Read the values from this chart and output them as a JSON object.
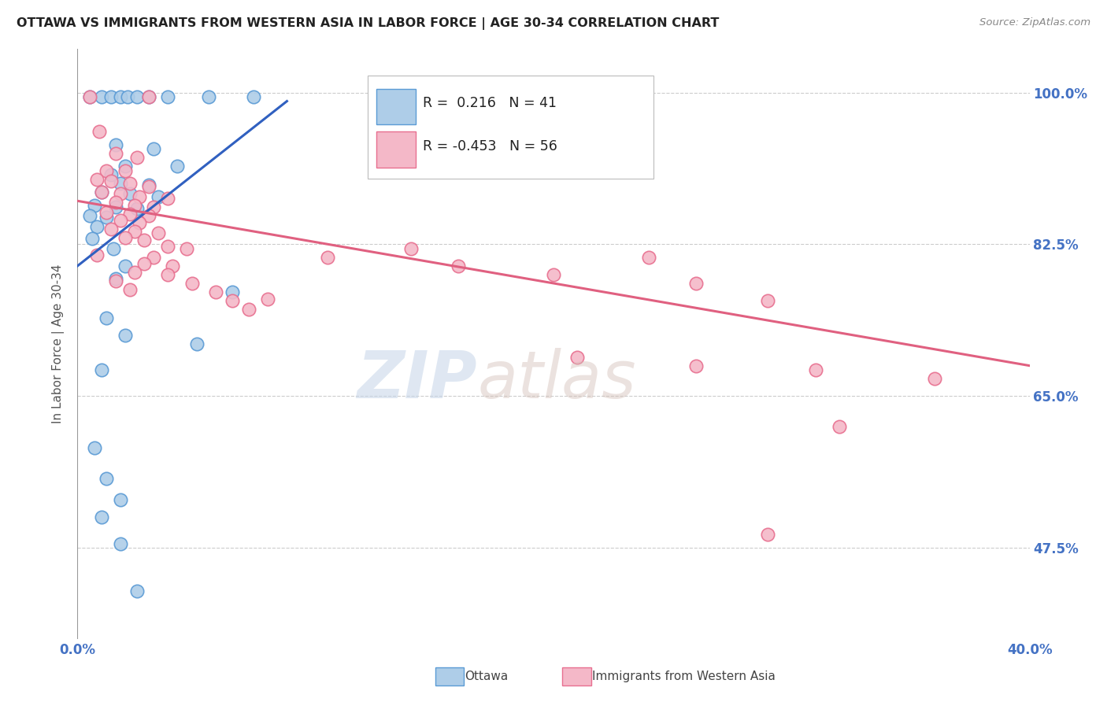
{
  "title": "OTTAWA VS IMMIGRANTS FROM WESTERN ASIA IN LABOR FORCE | AGE 30-34 CORRELATION CHART",
  "source": "Source: ZipAtlas.com",
  "ylabel": "In Labor Force | Age 30-34",
  "ytick_labels": [
    "100.0%",
    "82.5%",
    "65.0%",
    "47.5%"
  ],
  "ytick_values": [
    1.0,
    0.825,
    0.65,
    0.475
  ],
  "xlim": [
    0.0,
    0.4
  ],
  "ylim": [
    0.37,
    1.05
  ],
  "legend_R1": "0.216",
  "legend_N1": "41",
  "legend_R2": "-0.453",
  "legend_N2": "56",
  "ottawa_color": "#aecde8",
  "ottawa_edge": "#5b9bd5",
  "pink_color": "#f4b8c8",
  "pink_edge": "#e87090",
  "trendline_blue": "#3060c0",
  "trendline_pink": "#e06080",
  "watermark_zip": "ZIP",
  "watermark_atlas": "atlas",
  "ottawa_points": [
    [
      0.005,
      0.995
    ],
    [
      0.01,
      0.995
    ],
    [
      0.014,
      0.995
    ],
    [
      0.018,
      0.995
    ],
    [
      0.021,
      0.995
    ],
    [
      0.025,
      0.995
    ],
    [
      0.03,
      0.995
    ],
    [
      0.038,
      0.995
    ],
    [
      0.055,
      0.995
    ],
    [
      0.074,
      0.995
    ],
    [
      0.016,
      0.94
    ],
    [
      0.032,
      0.935
    ],
    [
      0.02,
      0.915
    ],
    [
      0.042,
      0.915
    ],
    [
      0.014,
      0.905
    ],
    [
      0.018,
      0.895
    ],
    [
      0.03,
      0.893
    ],
    [
      0.01,
      0.885
    ],
    [
      0.022,
      0.883
    ],
    [
      0.034,
      0.88
    ],
    [
      0.007,
      0.87
    ],
    [
      0.016,
      0.868
    ],
    [
      0.025,
      0.866
    ],
    [
      0.005,
      0.858
    ],
    [
      0.012,
      0.856
    ],
    [
      0.008,
      0.845
    ],
    [
      0.006,
      0.832
    ],
    [
      0.015,
      0.82
    ],
    [
      0.02,
      0.8
    ],
    [
      0.016,
      0.785
    ],
    [
      0.065,
      0.77
    ],
    [
      0.012,
      0.74
    ],
    [
      0.02,
      0.72
    ],
    [
      0.05,
      0.71
    ],
    [
      0.01,
      0.68
    ],
    [
      0.007,
      0.59
    ],
    [
      0.012,
      0.555
    ],
    [
      0.018,
      0.53
    ],
    [
      0.01,
      0.51
    ],
    [
      0.018,
      0.48
    ],
    [
      0.025,
      0.425
    ]
  ],
  "pink_points": [
    [
      0.005,
      0.995
    ],
    [
      0.03,
      0.995
    ],
    [
      0.009,
      0.955
    ],
    [
      0.016,
      0.93
    ],
    [
      0.025,
      0.925
    ],
    [
      0.012,
      0.91
    ],
    [
      0.02,
      0.91
    ],
    [
      0.008,
      0.9
    ],
    [
      0.014,
      0.898
    ],
    [
      0.022,
      0.895
    ],
    [
      0.03,
      0.892
    ],
    [
      0.01,
      0.885
    ],
    [
      0.018,
      0.883
    ],
    [
      0.026,
      0.88
    ],
    [
      0.038,
      0.878
    ],
    [
      0.016,
      0.873
    ],
    [
      0.024,
      0.87
    ],
    [
      0.032,
      0.868
    ],
    [
      0.012,
      0.862
    ],
    [
      0.022,
      0.86
    ],
    [
      0.03,
      0.858
    ],
    [
      0.018,
      0.853
    ],
    [
      0.026,
      0.85
    ],
    [
      0.014,
      0.843
    ],
    [
      0.024,
      0.84
    ],
    [
      0.034,
      0.838
    ],
    [
      0.02,
      0.833
    ],
    [
      0.028,
      0.83
    ],
    [
      0.038,
      0.823
    ],
    [
      0.046,
      0.82
    ],
    [
      0.008,
      0.813
    ],
    [
      0.032,
      0.81
    ],
    [
      0.028,
      0.803
    ],
    [
      0.04,
      0.8
    ],
    [
      0.024,
      0.793
    ],
    [
      0.038,
      0.79
    ],
    [
      0.016,
      0.783
    ],
    [
      0.048,
      0.78
    ],
    [
      0.022,
      0.773
    ],
    [
      0.058,
      0.77
    ],
    [
      0.065,
      0.76
    ],
    [
      0.072,
      0.75
    ],
    [
      0.08,
      0.762
    ],
    [
      0.105,
      0.81
    ],
    [
      0.14,
      0.82
    ],
    [
      0.16,
      0.8
    ],
    [
      0.2,
      0.79
    ],
    [
      0.24,
      0.81
    ],
    [
      0.26,
      0.78
    ],
    [
      0.29,
      0.76
    ],
    [
      0.21,
      0.695
    ],
    [
      0.26,
      0.685
    ],
    [
      0.31,
      0.68
    ],
    [
      0.36,
      0.67
    ],
    [
      0.32,
      0.615
    ],
    [
      0.29,
      0.49
    ]
  ]
}
